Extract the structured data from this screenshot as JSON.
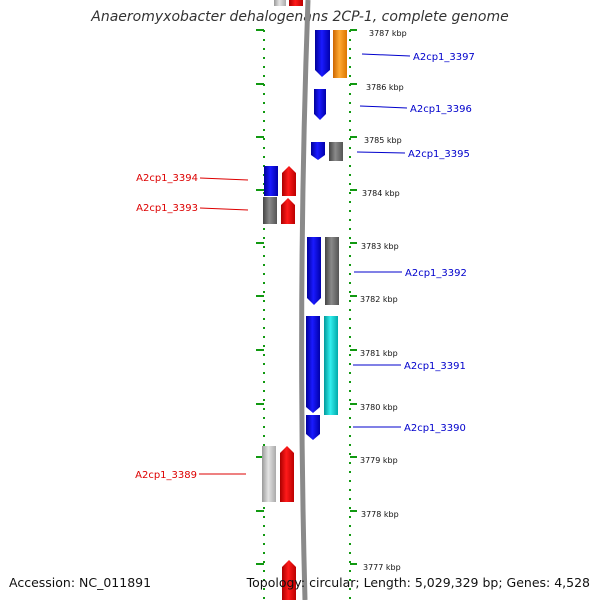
{
  "title": "Anaeromyxobacter dehalogenans 2CP-1, complete genome",
  "footer": {
    "accession": "Accession: NC_011891",
    "topology": "Topology: circular; Length: 5,029,329 bp; Genes: 4,528"
  },
  "colors": {
    "forward_label": "#0000cc",
    "reverse_label": "#dd0000",
    "tick": "#119911",
    "backbone": "#888888"
  },
  "kbp_labels": [
    "3787 kbp",
    "3786 kbp",
    "3785 kbp",
    "3784 kbp",
    "3783 kbp",
    "3782 kbp",
    "3781 kbp",
    "3780 kbp",
    "3779 kbp",
    "3778 kbp",
    "3777 kbp"
  ],
  "forward_genes": [
    {
      "name": "A2cp1_3397",
      "color": "blue"
    },
    {
      "name": "A2cp1_3396",
      "color": "blue"
    },
    {
      "name": "A2cp1_3395",
      "color": "blue"
    },
    {
      "name": "A2cp1_3392",
      "color": "blue"
    },
    {
      "name": "A2cp1_3391",
      "color": "blue"
    },
    {
      "name": "A2cp1_3390",
      "color": "blue"
    }
  ],
  "reverse_genes": [
    {
      "name": "A2cp1_3394",
      "color": "red"
    },
    {
      "name": "A2cp1_3393",
      "color": "red"
    },
    {
      "name": "A2cp1_3389",
      "color": "red"
    }
  ]
}
